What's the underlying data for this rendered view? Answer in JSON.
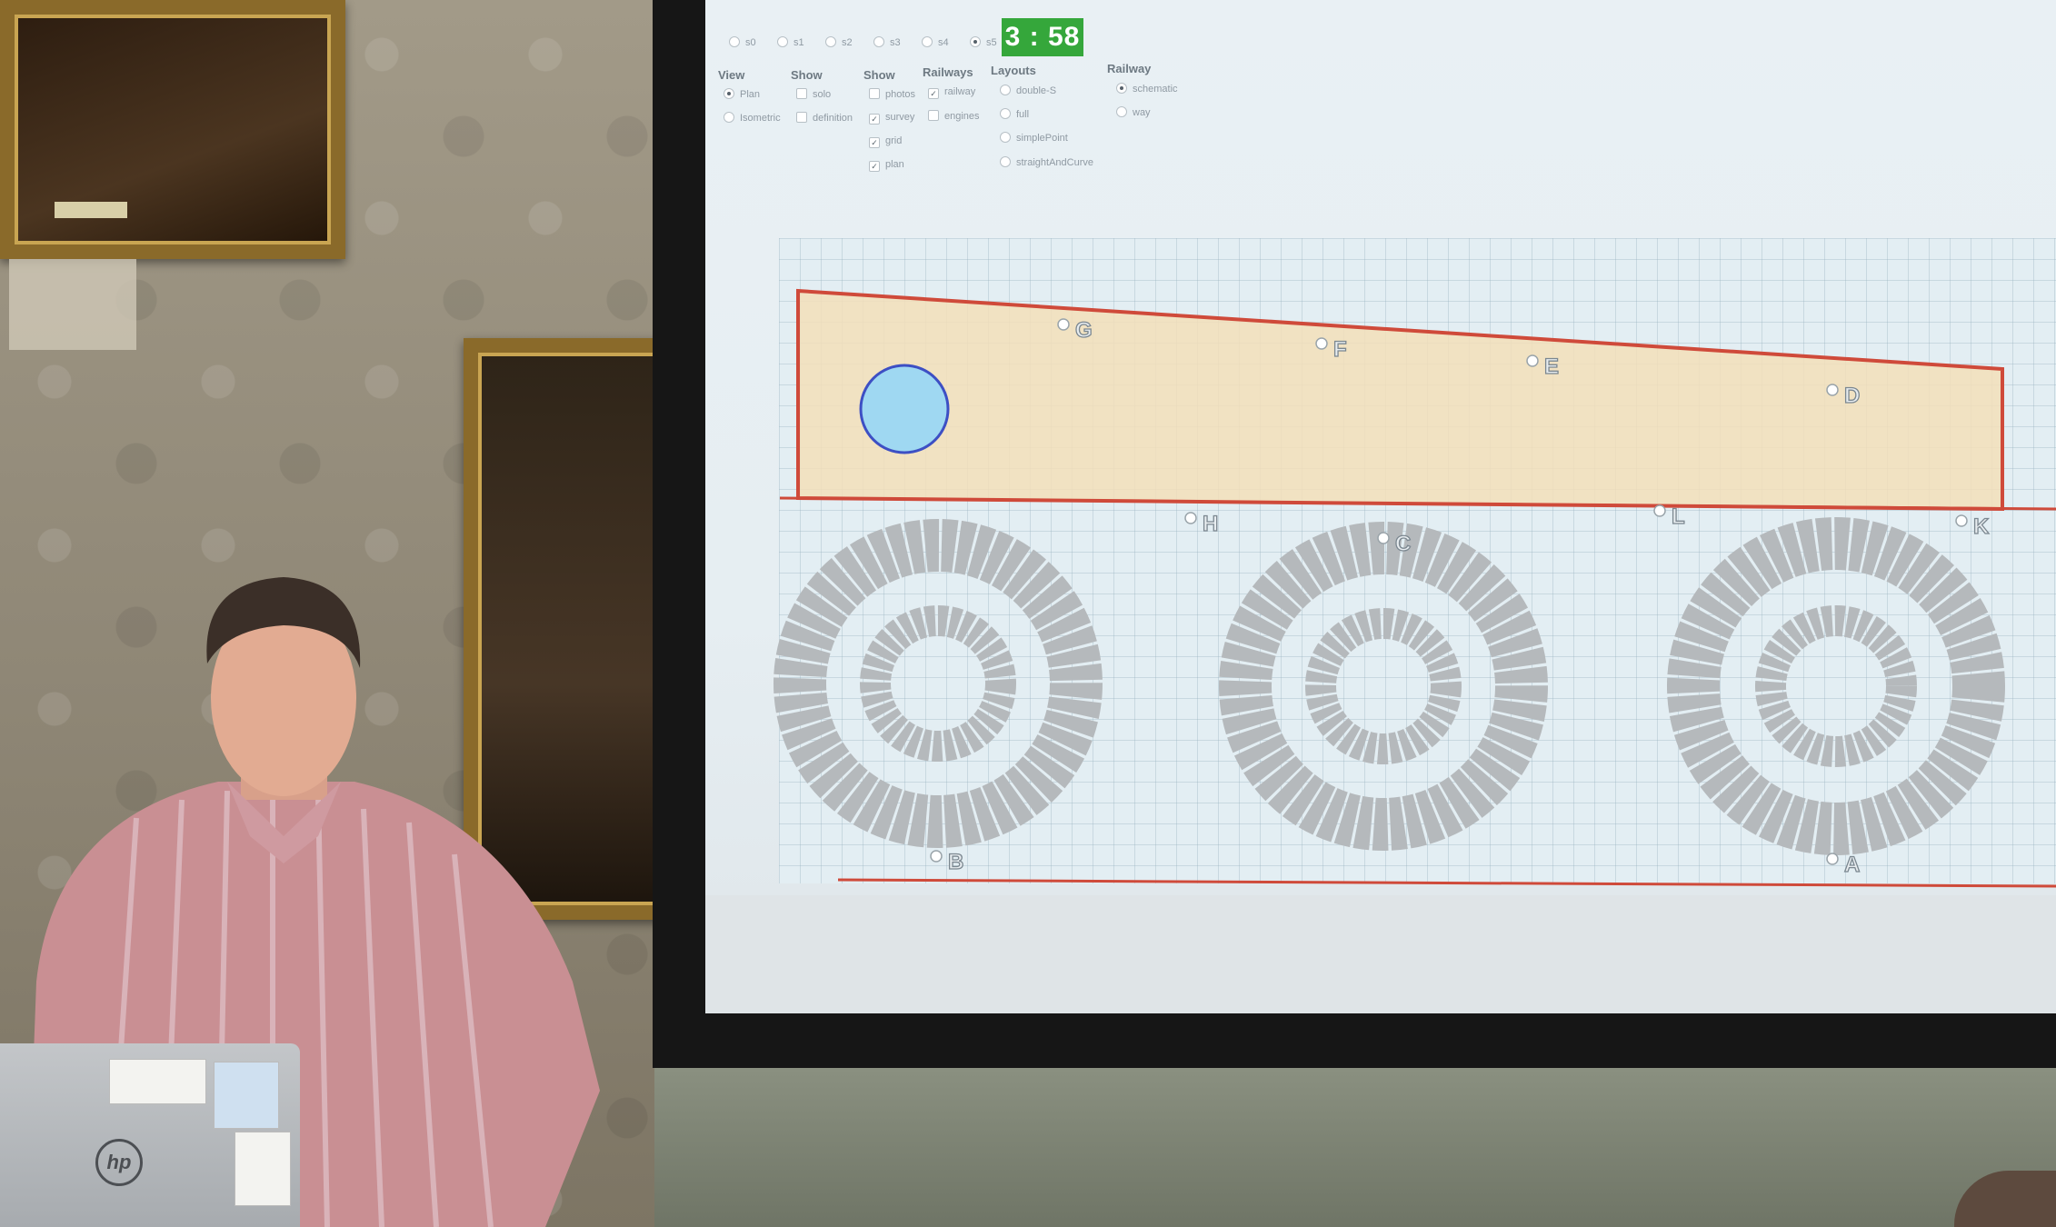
{
  "timer": "3 : 58",
  "slides": [
    {
      "label": "s0",
      "selected": false
    },
    {
      "label": "s1",
      "selected": false
    },
    {
      "label": "s2",
      "selected": false
    },
    {
      "label": "s3",
      "selected": false
    },
    {
      "label": "s4",
      "selected": false
    },
    {
      "label": "s5",
      "selected": true
    }
  ],
  "groups": {
    "view": {
      "title": "View",
      "options": [
        {
          "label": "Plan",
          "selected": true
        },
        {
          "label": "Isometric",
          "selected": false
        }
      ]
    },
    "show1": {
      "title": "Show",
      "options": [
        {
          "label": "solo",
          "checked": false
        },
        {
          "label": "definition",
          "checked": false
        }
      ]
    },
    "show2": {
      "title": "Show",
      "options": [
        {
          "label": "photos",
          "checked": false
        },
        {
          "label": "survey",
          "checked": true
        },
        {
          "label": "grid",
          "checked": true
        },
        {
          "label": "plan",
          "checked": true
        }
      ]
    },
    "railways": {
      "title": "Railways",
      "options": [
        {
          "label": "railway",
          "checked": true
        },
        {
          "label": "engines",
          "checked": false
        }
      ]
    },
    "layouts": {
      "title": "Layouts",
      "options": [
        {
          "label": "double-S",
          "selected": false
        },
        {
          "label": "full",
          "selected": false
        },
        {
          "label": "simplePoint",
          "selected": false
        },
        {
          "label": "straightAndCurve",
          "selected": false
        }
      ]
    },
    "railway": {
      "title": "Railway",
      "options": [
        {
          "label": "schematic",
          "selected": true
        },
        {
          "label": "way",
          "selected": false
        }
      ]
    }
  },
  "points": [
    "G",
    "F",
    "E",
    "D",
    "H",
    "C",
    "L",
    "K",
    "B",
    "A"
  ],
  "colors": {
    "timer_bg": "#35a73b",
    "plan_fill": "#f3dfb8",
    "plan_outline": "#cf4a3a",
    "circle_fill": "#9fd8f2",
    "circle_outline": "#3d4fc4",
    "ring": "#b5b9bc"
  },
  "laptop": {
    "logo": "hp"
  }
}
